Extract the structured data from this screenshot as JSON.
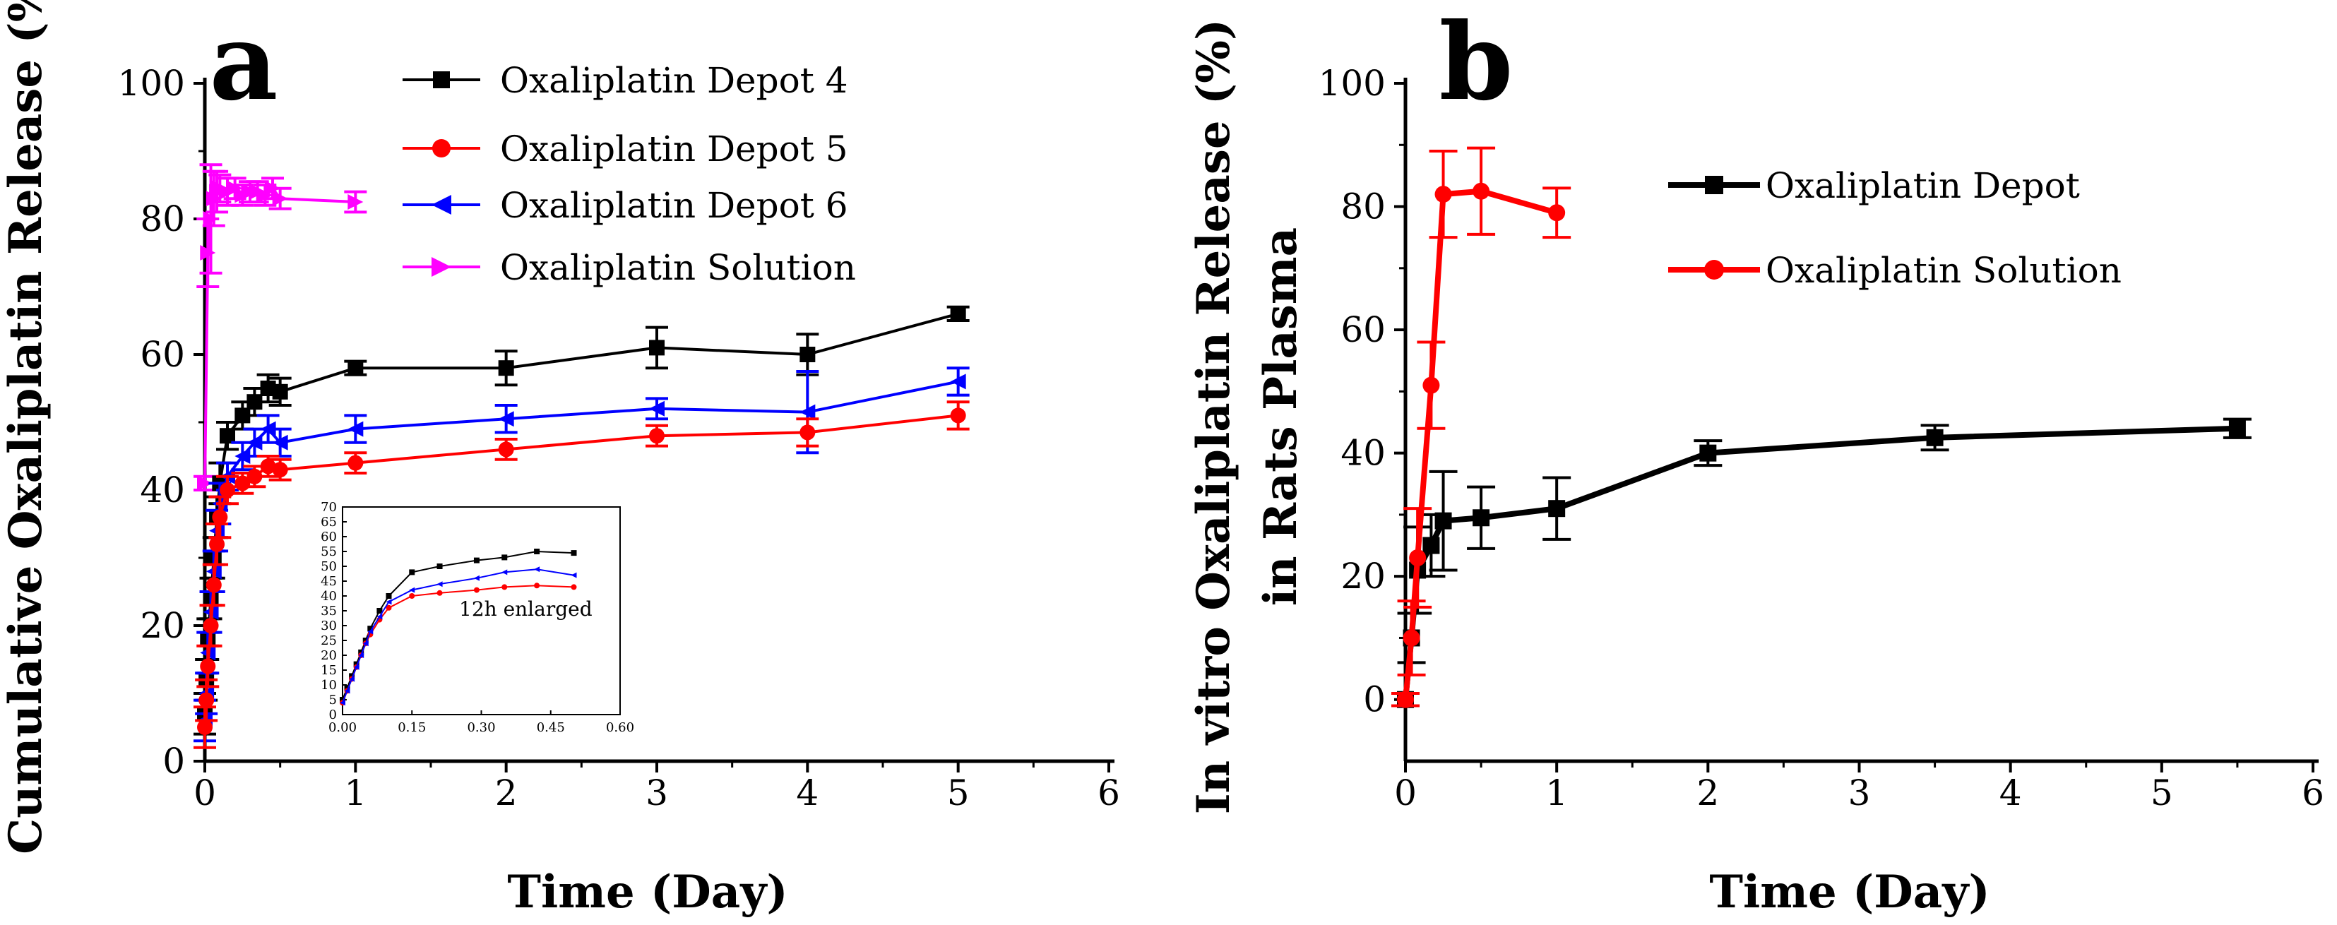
{
  "chart_data": [
    {
      "type": "line",
      "panel_label": "a",
      "xlabel": "Time (Day)",
      "ylabel": "Cumulative Oxaliplatin Release (%)",
      "xlim": [
        0,
        6
      ],
      "ylim": [
        0,
        100
      ],
      "xticks": [
        "0",
        "1",
        "2",
        "3",
        "4",
        "5",
        "6"
      ],
      "yticks": [
        "0",
        "20",
        "40",
        "60",
        "80",
        "100"
      ],
      "legend_position": "top-right",
      "series": [
        {
          "name": "Oxaliplatin Depot 4",
          "color": "#000000",
          "marker": "square",
          "x": [
            0,
            0.01,
            0.02,
            0.04,
            0.06,
            0.08,
            0.1,
            0.15,
            0.25,
            0.33,
            0.42,
            0.5,
            1,
            2,
            3,
            4,
            5
          ],
          "y": [
            7,
            12,
            18,
            24,
            30,
            36,
            41,
            48,
            51,
            53,
            55,
            54.5,
            58,
            58,
            61,
            60,
            66
          ],
          "err": [
            3,
            3,
            3,
            3,
            3,
            3,
            3,
            2,
            2,
            2,
            2,
            2,
            1,
            2.5,
            3,
            3,
            1
          ]
        },
        {
          "name": "Oxaliplatin Depot 5",
          "color": "#ff0000",
          "marker": "circle",
          "x": [
            0,
            0.01,
            0.02,
            0.04,
            0.06,
            0.08,
            0.1,
            0.15,
            0.25,
            0.33,
            0.42,
            0.5,
            1,
            2,
            3,
            4,
            5
          ],
          "y": [
            5,
            9,
            14,
            20,
            26,
            32,
            36,
            40,
            41,
            42,
            43.5,
            43,
            44,
            46,
            48,
            48.5,
            51
          ],
          "err": [
            3,
            3,
            3,
            3,
            3,
            3,
            3,
            2,
            1.5,
            1.5,
            1.5,
            1.5,
            1.5,
            1.5,
            1.5,
            2,
            2
          ]
        },
        {
          "name": "Oxaliplatin Depot 6",
          "color": "#0000ff",
          "marker": "left-triangle",
          "x": [
            0,
            0.01,
            0.02,
            0.04,
            0.06,
            0.08,
            0.1,
            0.15,
            0.25,
            0.33,
            0.42,
            0.5,
            1,
            2,
            3,
            4,
            5
          ],
          "y": [
            6,
            10,
            16,
            22,
            28,
            34,
            38,
            42,
            45,
            47,
            49,
            47,
            49,
            50.5,
            52,
            51.5,
            56
          ],
          "err": [
            3,
            3,
            3,
            3,
            3,
            3,
            3,
            2,
            2,
            2,
            2,
            2,
            2,
            2,
            1.5,
            6,
            2
          ]
        },
        {
          "name": "Oxaliplatin Solution",
          "color": "#ff00ff",
          "marker": "right-triangle",
          "x": [
            0,
            0.02,
            0.04,
            0.06,
            0.08,
            0.1,
            0.15,
            0.2,
            0.25,
            0.3,
            0.35,
            0.4,
            0.45,
            0.5,
            1
          ],
          "y": [
            41,
            75,
            80,
            83,
            84,
            84.5,
            84,
            84.5,
            83.5,
            84,
            84,
            83.5,
            84.5,
            83,
            82.5
          ],
          "err": [
            1,
            5,
            8,
            4,
            3,
            2,
            2,
            1.5,
            1.5,
            1.5,
            1.5,
            1.5,
            1.5,
            1.5,
            1.5
          ]
        }
      ],
      "inset": {
        "note": "12h enlarged",
        "xlim": [
          0,
          0.6
        ],
        "ylim": [
          0,
          70
        ],
        "xticks": [
          "0.00",
          "0.15",
          "0.30",
          "0.45",
          "0.60"
        ],
        "yticks": [
          "0",
          "5",
          "10",
          "15",
          "20",
          "25",
          "30",
          "35",
          "40",
          "45",
          "50",
          "55",
          "60",
          "65",
          "70"
        ],
        "series": [
          {
            "name": "Oxaliplatin Depot 4",
            "color": "#000000",
            "x": [
              0,
              0.01,
              0.02,
              0.03,
              0.04,
              0.05,
              0.06,
              0.08,
              0.1,
              0.15,
              0.21,
              0.29,
              0.35,
              0.42,
              0.5
            ],
            "y": [
              5,
              9,
              13,
              17,
              21,
              25,
              29,
              35,
              40,
              48,
              50,
              52,
              53,
              55,
              54.5
            ]
          },
          {
            "name": "Oxaliplatin Depot 5",
            "color": "#ff0000",
            "x": [
              0,
              0.01,
              0.02,
              0.03,
              0.04,
              0.05,
              0.06,
              0.08,
              0.1,
              0.15,
              0.21,
              0.29,
              0.35,
              0.42,
              0.5
            ],
            "y": [
              4,
              8,
              12,
              16,
              20,
              24,
              27,
              32,
              36,
              40,
              41,
              42,
              43,
              43.5,
              43
            ]
          },
          {
            "name": "Oxaliplatin Depot 6",
            "color": "#0000ff",
            "x": [
              0,
              0.01,
              0.02,
              0.03,
              0.04,
              0.05,
              0.06,
              0.08,
              0.1,
              0.15,
              0.21,
              0.29,
              0.35,
              0.42,
              0.5
            ],
            "y": [
              4,
              8,
              12,
              16,
              20,
              24,
              28,
              33,
              38,
              42,
              44,
              46,
              48,
              49,
              47
            ]
          }
        ]
      }
    },
    {
      "type": "line",
      "panel_label": "b",
      "xlabel": "Time (Day)",
      "ylabel": "In vitro Oxaliplatin Release (%)",
      "ylabel2": "in Rats Plasma",
      "xlim": [
        0,
        6
      ],
      "ylim": [
        -10,
        100
      ],
      "xticks": [
        "0",
        "1",
        "2",
        "3",
        "4",
        "5",
        "6"
      ],
      "yticks": [
        "0",
        "20",
        "40",
        "60",
        "80",
        "100"
      ],
      "legend_position": "top-right",
      "series": [
        {
          "name": "Oxaliplatin Depot",
          "color": "#000000",
          "marker": "square",
          "x": [
            0,
            0.04,
            0.08,
            0.17,
            0.25,
            0.5,
            1,
            2,
            3.5,
            5.5
          ],
          "y": [
            0,
            10,
            21,
            25,
            29,
            29.5,
            31,
            40,
            42.5,
            44
          ],
          "err": [
            1,
            4,
            7,
            5,
            8,
            5,
            5,
            2,
            2,
            1.5
          ]
        },
        {
          "name": "Oxaliplatin Solution",
          "color": "#ff0000",
          "marker": "circle",
          "x": [
            0,
            0.04,
            0.08,
            0.17,
            0.25,
            0.5,
            1
          ],
          "y": [
            0,
            10,
            23,
            51,
            82,
            82.5,
            79
          ],
          "err": [
            1,
            6,
            8,
            7,
            7,
            7,
            4
          ]
        }
      ]
    }
  ]
}
